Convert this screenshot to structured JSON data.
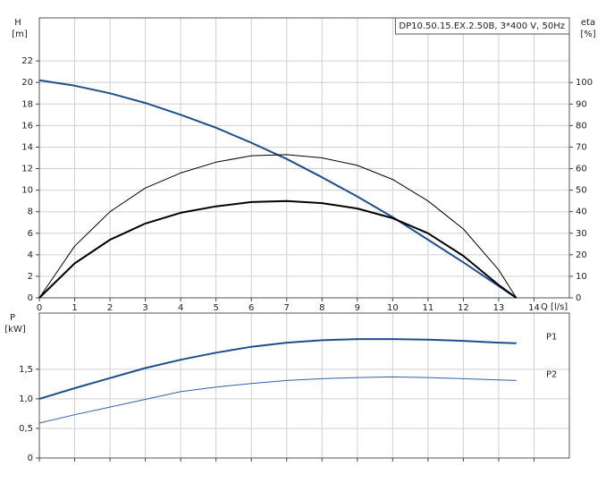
{
  "chart_data": [
    {
      "type": "line",
      "title": "DP10.50.15.EX.2.50B, 3*400 V, 50Hz",
      "ylabel": "H",
      "ylabel_unit": "[m]",
      "y2label": "eta",
      "y2label_unit": "[%]",
      "xlabel": "Q [l/s]",
      "x": [
        0,
        1,
        2,
        3,
        4,
        5,
        6,
        7,
        8,
        9,
        10,
        11,
        12,
        13,
        13.5
      ],
      "xlim": [
        0,
        15
      ],
      "xticks": [
        0,
        1,
        2,
        3,
        4,
        5,
        6,
        7,
        8,
        9,
        10,
        11,
        12,
        13,
        14
      ],
      "ylim": [
        0,
        26
      ],
      "yticks": [
        0,
        2,
        4,
        6,
        8,
        10,
        12,
        14,
        16,
        18,
        20,
        22
      ],
      "y2lim": [
        0,
        130
      ],
      "y2ticks": [
        0,
        10,
        20,
        30,
        40,
        50,
        60,
        70,
        80,
        90,
        100
      ],
      "grid": true,
      "series": [
        {
          "color": "#1f4e8c",
          "width": 2,
          "values": [
            20.2,
            19.7,
            19.0,
            18.1,
            17.0,
            15.8,
            14.4,
            12.9,
            11.2,
            9.4,
            7.5,
            5.4,
            3.3,
            1.1,
            0
          ]
        },
        {
          "color": "#000000",
          "width": 1,
          "axis": "y2",
          "values": [
            0,
            24,
            40,
            51,
            58,
            63,
            66,
            66.5,
            65,
            61.5,
            55,
            45,
            32,
            13,
            0
          ]
        },
        {
          "color": "#000000",
          "width": 2,
          "axis": "y2",
          "values": [
            0,
            16,
            27,
            34.5,
            39.5,
            42.5,
            44.5,
            45,
            44,
            41.5,
            37,
            30,
            19.5,
            6,
            0
          ]
        }
      ]
    },
    {
      "type": "line",
      "ylabel": "P",
      "ylabel_unit": "[kW]",
      "x": [
        0,
        1,
        2,
        3,
        4,
        5,
        6,
        7,
        8,
        9,
        10,
        11,
        12,
        13,
        13.5
      ],
      "xlim": [
        0,
        15
      ],
      "xticks": [
        0,
        1,
        2,
        3,
        4,
        5,
        6,
        7,
        8,
        9,
        10,
        11,
        12,
        13,
        14
      ],
      "ylim": [
        0,
        2.45
      ],
      "yticks": [
        0,
        {
          "value": 0.5,
          "label": "0,5"
        },
        {
          "value": 1,
          "label": "1,0"
        },
        {
          "value": 1.5,
          "label": "1,5"
        }
      ],
      "grid": true,
      "series": [
        {
          "name": "P1",
          "color": "#1f4e8c",
          "width": 2,
          "values": [
            1.0,
            1.18,
            1.35,
            1.52,
            1.66,
            1.78,
            1.88,
            1.95,
            1.99,
            2.01,
            2.01,
            2.0,
            1.98,
            1.95,
            1.94
          ]
        },
        {
          "name": "P2",
          "color": "#2e62a8",
          "width": 1,
          "values": [
            0.59,
            0.73,
            0.86,
            0.99,
            1.12,
            1.2,
            1.26,
            1.31,
            1.34,
            1.36,
            1.37,
            1.36,
            1.34,
            1.32,
            1.31
          ]
        }
      ]
    }
  ]
}
